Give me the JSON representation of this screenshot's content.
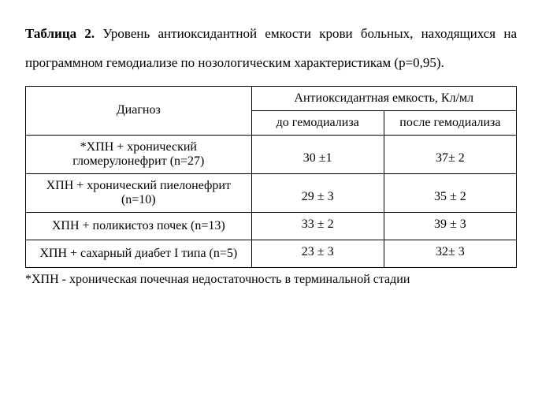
{
  "caption": {
    "label": "Таблица 2.",
    "text": " Уровень антиоксидантной емкости крови больных, находящихся на программном гемодиализе по нозологическим характеристикам (p=0,95)."
  },
  "table": {
    "header": {
      "diagnosis": "Диагноз",
      "capacity_group": "Антиоксидантная емкость, Кл/мл",
      "before": "до гемодиализа",
      "after": "после гемодиализа"
    },
    "rows": [
      {
        "diagnosis": "*ХПН + хронический гломерулонефрит  (n=27)",
        "before": "30 ±1",
        "after": "37± 2"
      },
      {
        "diagnosis": "ХПН + хронический пиелонефрит (n=10)",
        "before": "29 ± 3",
        "after": "35 ± 2"
      },
      {
        "diagnosis": "ХПН + поликистоз почек (n=13)",
        "before": "33 ± 2",
        "after": "39 ± 3"
      },
      {
        "diagnosis": "ХПН + сахарный диабет I типа (n=5)",
        "before": "23 ± 3",
        "after": "32± 3"
      }
    ]
  },
  "footnote": "*ХПН - хроническая почечная недостаточность в терминальной стадии"
}
